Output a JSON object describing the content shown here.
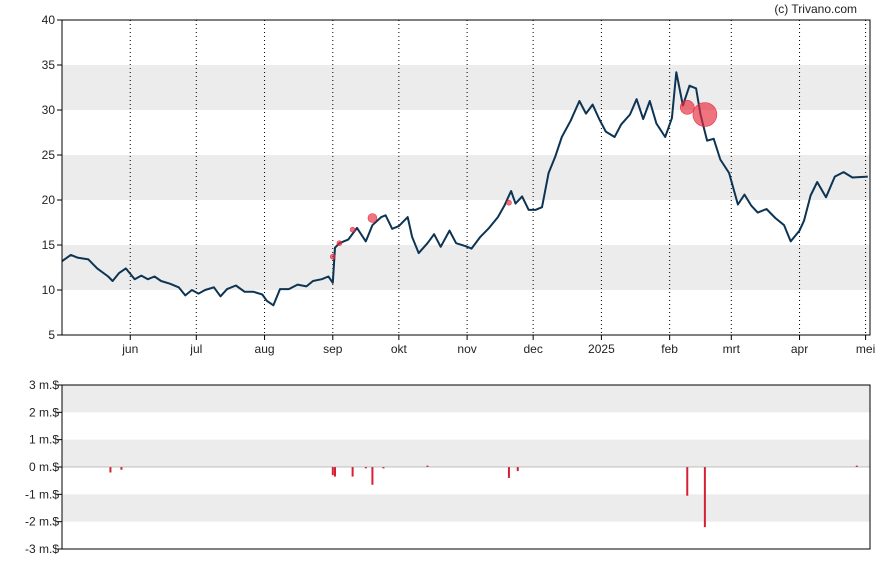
{
  "credit": "(c) Trivano.com",
  "colors": {
    "price_line": "#0d3453",
    "insider_marker": "#e8283c",
    "volume_bar": "#d61f33",
    "band": "#ececec",
    "frame": "#000000"
  },
  "chart_data": [
    {
      "type": "line",
      "ylim": [
        5,
        40
      ],
      "y_ticks": [
        5,
        10,
        15,
        20,
        25,
        30,
        35,
        40
      ],
      "y_tick_labels": [
        "5",
        "10",
        "15",
        "20",
        "25",
        "30",
        "35",
        "40"
      ],
      "x_tick_labels": [
        "jun",
        "jul",
        "aug",
        "sep",
        "okt",
        "nov",
        "dec",
        "2025",
        "feb",
        "mrt",
        "apr",
        "mei"
      ],
      "x_tick_dates": [
        "2024-06-01",
        "2024-07-01",
        "2024-08-01",
        "2024-09-01",
        "2024-10-01",
        "2024-11-01",
        "2024-12-01",
        "2025-01-01",
        "2025-02-01",
        "2025-03-01",
        "2025-04-01",
        "2025-05-01"
      ],
      "x_range": [
        "2024-05-01",
        "2025-05-03"
      ],
      "grid": "vertical dotted lines at month ticks, alternating horizontal bands",
      "series": [
        {
          "values": [
            [
              "2024-05-01",
              13.2
            ],
            [
              "2024-05-05",
              13.9
            ],
            [
              "2024-05-08",
              13.6
            ],
            [
              "2024-05-13",
              13.4
            ],
            [
              "2024-05-17",
              12.4
            ],
            [
              "2024-05-22",
              11.5
            ],
            [
              "2024-05-24",
              11.0
            ],
            [
              "2024-05-27",
              11.9
            ],
            [
              "2024-05-30",
              12.4
            ],
            [
              "2024-06-03",
              11.2
            ],
            [
              "2024-06-06",
              11.6
            ],
            [
              "2024-06-09",
              11.2
            ],
            [
              "2024-06-12",
              11.5
            ],
            [
              "2024-06-15",
              11.0
            ],
            [
              "2024-06-19",
              10.7
            ],
            [
              "2024-06-23",
              10.3
            ],
            [
              "2024-06-26",
              9.4
            ],
            [
              "2024-06-29",
              10.0
            ],
            [
              "2024-07-02",
              9.6
            ],
            [
              "2024-07-05",
              10.0
            ],
            [
              "2024-07-09",
              10.3
            ],
            [
              "2024-07-12",
              9.3
            ],
            [
              "2024-07-15",
              10.1
            ],
            [
              "2024-07-19",
              10.5
            ],
            [
              "2024-07-23",
              9.8
            ],
            [
              "2024-07-27",
              9.8
            ],
            [
              "2024-07-31",
              9.5
            ],
            [
              "2024-08-02",
              8.8
            ],
            [
              "2024-08-05",
              8.3
            ],
            [
              "2024-08-08",
              10.1
            ],
            [
              "2024-08-12",
              10.1
            ],
            [
              "2024-08-16",
              10.6
            ],
            [
              "2024-08-20",
              10.4
            ],
            [
              "2024-08-23",
              11.0
            ],
            [
              "2024-08-27",
              11.2
            ],
            [
              "2024-08-30",
              11.5
            ],
            [
              "2024-09-01",
              10.8
            ],
            [
              "2024-09-02",
              14.7
            ],
            [
              "2024-09-04",
              15.2
            ],
            [
              "2024-09-08",
              15.6
            ],
            [
              "2024-09-12",
              16.9
            ],
            [
              "2024-09-16",
              15.4
            ],
            [
              "2024-09-19",
              17.2
            ],
            [
              "2024-09-23",
              18.1
            ],
            [
              "2024-09-25",
              18.3
            ],
            [
              "2024-09-28",
              16.8
            ],
            [
              "2024-10-01",
              17.1
            ],
            [
              "2024-10-05",
              18.1
            ],
            [
              "2024-10-07",
              15.9
            ],
            [
              "2024-10-10",
              14.1
            ],
            [
              "2024-10-14",
              15.2
            ],
            [
              "2024-10-17",
              16.2
            ],
            [
              "2024-10-20",
              14.8
            ],
            [
              "2024-10-24",
              16.6
            ],
            [
              "2024-10-27",
              15.2
            ],
            [
              "2024-10-31",
              14.9
            ],
            [
              "2024-11-03",
              14.6
            ],
            [
              "2024-11-07",
              15.9
            ],
            [
              "2024-11-11",
              16.9
            ],
            [
              "2024-11-15",
              18.1
            ],
            [
              "2024-11-18",
              19.4
            ],
            [
              "2024-11-21",
              21.0
            ],
            [
              "2024-11-23",
              19.6
            ],
            [
              "2024-11-26",
              20.4
            ],
            [
              "2024-11-29",
              18.9
            ],
            [
              "2024-12-02",
              18.9
            ],
            [
              "2024-12-05",
              19.2
            ],
            [
              "2024-12-08",
              23.0
            ],
            [
              "2024-12-11",
              24.8
            ],
            [
              "2024-12-14",
              27.0
            ],
            [
              "2024-12-18",
              28.8
            ],
            [
              "2024-12-22",
              31.0
            ],
            [
              "2024-12-25",
              29.6
            ],
            [
              "2024-12-28",
              30.6
            ],
            [
              "2024-12-31",
              29.0
            ],
            [
              "2025-01-03",
              27.6
            ],
            [
              "2025-01-07",
              27.0
            ],
            [
              "2025-01-10",
              28.4
            ],
            [
              "2025-01-14",
              29.5
            ],
            [
              "2025-01-17",
              31.2
            ],
            [
              "2025-01-20",
              29.0
            ],
            [
              "2025-01-23",
              31.0
            ],
            [
              "2025-01-26",
              28.5
            ],
            [
              "2025-01-30",
              27.0
            ],
            [
              "2025-02-02",
              29.1
            ],
            [
              "2025-02-04",
              34.2
            ],
            [
              "2025-02-07",
              30.5
            ],
            [
              "2025-02-10",
              32.7
            ],
            [
              "2025-02-13",
              32.4
            ],
            [
              "2025-02-15",
              29.5
            ],
            [
              "2025-02-18",
              26.6
            ],
            [
              "2025-02-21",
              26.8
            ],
            [
              "2025-02-24",
              24.5
            ],
            [
              "2025-02-28",
              23.0
            ],
            [
              "2025-03-04",
              19.5
            ],
            [
              "2025-03-07",
              20.6
            ],
            [
              "2025-03-10",
              19.4
            ],
            [
              "2025-03-13",
              18.6
            ],
            [
              "2025-03-17",
              19.0
            ],
            [
              "2025-03-21",
              18.0
            ],
            [
              "2025-03-25",
              17.2
            ],
            [
              "2025-03-28",
              15.4
            ],
            [
              "2025-04-01",
              16.6
            ],
            [
              "2025-04-03",
              17.7
            ],
            [
              "2025-04-06",
              20.5
            ],
            [
              "2025-04-09",
              22.0
            ],
            [
              "2025-04-13",
              20.3
            ],
            [
              "2025-04-17",
              22.6
            ],
            [
              "2025-04-21",
              23.1
            ],
            [
              "2025-04-25",
              22.5
            ],
            [
              "2025-05-02",
              22.6
            ]
          ]
        }
      ],
      "markers": [
        {
          "date": "2024-09-01",
          "value": 13.7,
          "size": "small"
        },
        {
          "date": "2024-09-04",
          "value": 15.2,
          "size": "small"
        },
        {
          "date": "2024-09-10",
          "value": 16.7,
          "size": "small"
        },
        {
          "date": "2024-09-19",
          "value": 18.0,
          "size": "medium"
        },
        {
          "date": "2024-11-20",
          "value": 19.7,
          "size": "small"
        },
        {
          "date": "2025-02-09",
          "value": 30.3,
          "size": "large"
        },
        {
          "date": "2025-02-17",
          "value": 29.5,
          "size": "xlarge"
        }
      ]
    },
    {
      "type": "bar",
      "ylim": [
        -3,
        3
      ],
      "y_ticks": [
        3,
        2,
        1,
        0,
        -1,
        -2,
        -3
      ],
      "y_tick_labels": [
        "3 m.$",
        "2 m.$",
        "1 m.$",
        "0 m.$",
        "-1 m.$",
        "-2 m.$",
        "-3 m.$"
      ],
      "x_range": [
        "2024-05-01",
        "2025-05-03"
      ],
      "series": [
        {
          "values": [
            [
              "2024-05-23",
              -0.2
            ],
            [
              "2024-05-28",
              -0.1
            ],
            [
              "2024-09-01",
              -0.3
            ],
            [
              "2024-09-02",
              -0.35
            ],
            [
              "2024-09-10",
              -0.35
            ],
            [
              "2024-09-16",
              -0.05
            ],
            [
              "2024-09-19",
              -0.65
            ],
            [
              "2024-09-24",
              -0.05
            ],
            [
              "2024-10-14",
              0.05
            ],
            [
              "2024-11-20",
              -0.4
            ],
            [
              "2024-11-24",
              -0.15
            ],
            [
              "2025-02-09",
              -1.05
            ],
            [
              "2025-02-17",
              -2.2
            ],
            [
              "2025-04-27",
              0.05
            ]
          ]
        }
      ]
    }
  ]
}
